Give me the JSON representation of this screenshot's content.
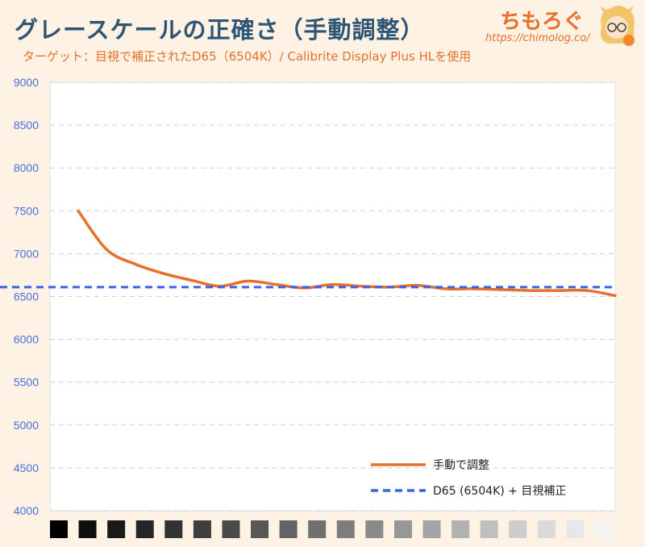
{
  "header": {
    "title": "グレースケールの正確さ（手動調整）",
    "subtitle": "ターゲット：目視で補正されたD65（6504K）/ Calibrite Display Plus HLを使用",
    "logo_text": "ちもろぐ",
    "logo_url": "https://chimolog.co/"
  },
  "colors": {
    "background": "#fdf2e4",
    "plot_area": "#ffffff",
    "title": "#2f5574",
    "accent": "#e8702b",
    "axis_labels": "#4a6ee0",
    "target_line": "#3a63e6",
    "grid": "#d0d0d0"
  },
  "chart_data": {
    "type": "line",
    "title": "グレースケールの正確さ（手動調整）",
    "subtitle": "ターゲット：目視で補正されたD65（6504K）/ Calibrite Display Plus HLを使用",
    "ylim": [
      4000,
      9000
    ],
    "yticks": [
      4000,
      4500,
      5000,
      5500,
      6000,
      6500,
      7000,
      7500,
      8000,
      8500,
      9000
    ],
    "grid": true,
    "legend_position": "bottom-right",
    "x_categories": 20,
    "series": [
      {
        "name": "手動で調整",
        "style": "solid",
        "color": "#e8702b",
        "values": [
          7500,
          7050,
          6880,
          6770,
          6690,
          6620,
          6680,
          6640,
          6600,
          6640,
          6620,
          6610,
          6630,
          6590,
          6590,
          6580,
          6570,
          6570,
          6570,
          6510
        ]
      },
      {
        "name": "D65 (6504K) + 目視補正",
        "style": "dashed",
        "color": "#3a63e6",
        "constant": 6610
      }
    ],
    "x_swatches": [
      "#000000",
      "#0e0e0e",
      "#1a1a1a",
      "#262626",
      "#323232",
      "#3e3e3e",
      "#4a4a4a",
      "#575757",
      "#636363",
      "#707070",
      "#7d7d7d",
      "#8a8a8a",
      "#979797",
      "#a4a4a4",
      "#b2b2b2",
      "#bfbfbf",
      "#cdcdcd",
      "#dadada",
      "#e7e7e7",
      "#f3f3f3"
    ]
  }
}
